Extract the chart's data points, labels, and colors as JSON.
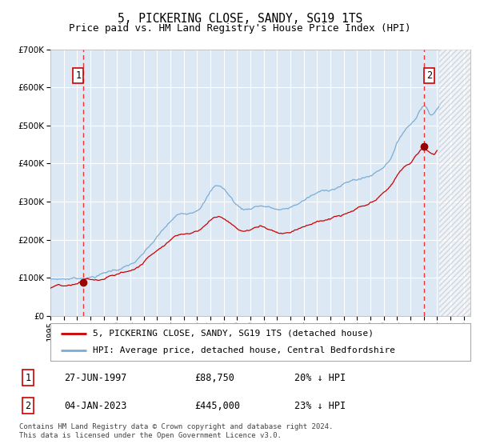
{
  "title": "5, PICKERING CLOSE, SANDY, SG19 1TS",
  "subtitle": "Price paid vs. HM Land Registry's House Price Index (HPI)",
  "ylim": [
    0,
    700000
  ],
  "xlim_start": 1995.0,
  "xlim_end": 2026.5,
  "yticks": [
    0,
    100000,
    200000,
    300000,
    400000,
    500000,
    600000,
    700000
  ],
  "background_color": "#ffffff",
  "plot_bg_color": "#dde8f5",
  "grid_color": "#ffffff",
  "hatch_start": 2024.17,
  "transaction1_x": 1997.49,
  "transaction1_y": 88750,
  "transaction1_label": "27-JUN-1997",
  "transaction1_price": "£88,750",
  "transaction1_hpi": "20% ↓ HPI",
  "transaction2_x": 2023.01,
  "transaction2_y": 445000,
  "transaction2_label": "04-JAN-2023",
  "transaction2_price": "£445,000",
  "transaction2_hpi": "23% ↓ HPI",
  "red_line_color": "#cc0000",
  "blue_line_color": "#7aadd4",
  "dashed_line_color": "#ee3333",
  "marker_color": "#990000",
  "legend_label_red": "5, PICKERING CLOSE, SANDY, SG19 1TS (detached house)",
  "legend_label_blue": "HPI: Average price, detached house, Central Bedfordshire",
  "footer": "Contains HM Land Registry data © Crown copyright and database right 2024.\nThis data is licensed under the Open Government Licence v3.0.",
  "title_fontsize": 10.5,
  "subtitle_fontsize": 9,
  "tick_fontsize": 7.5,
  "legend_fontsize": 8,
  "footer_fontsize": 6.5
}
